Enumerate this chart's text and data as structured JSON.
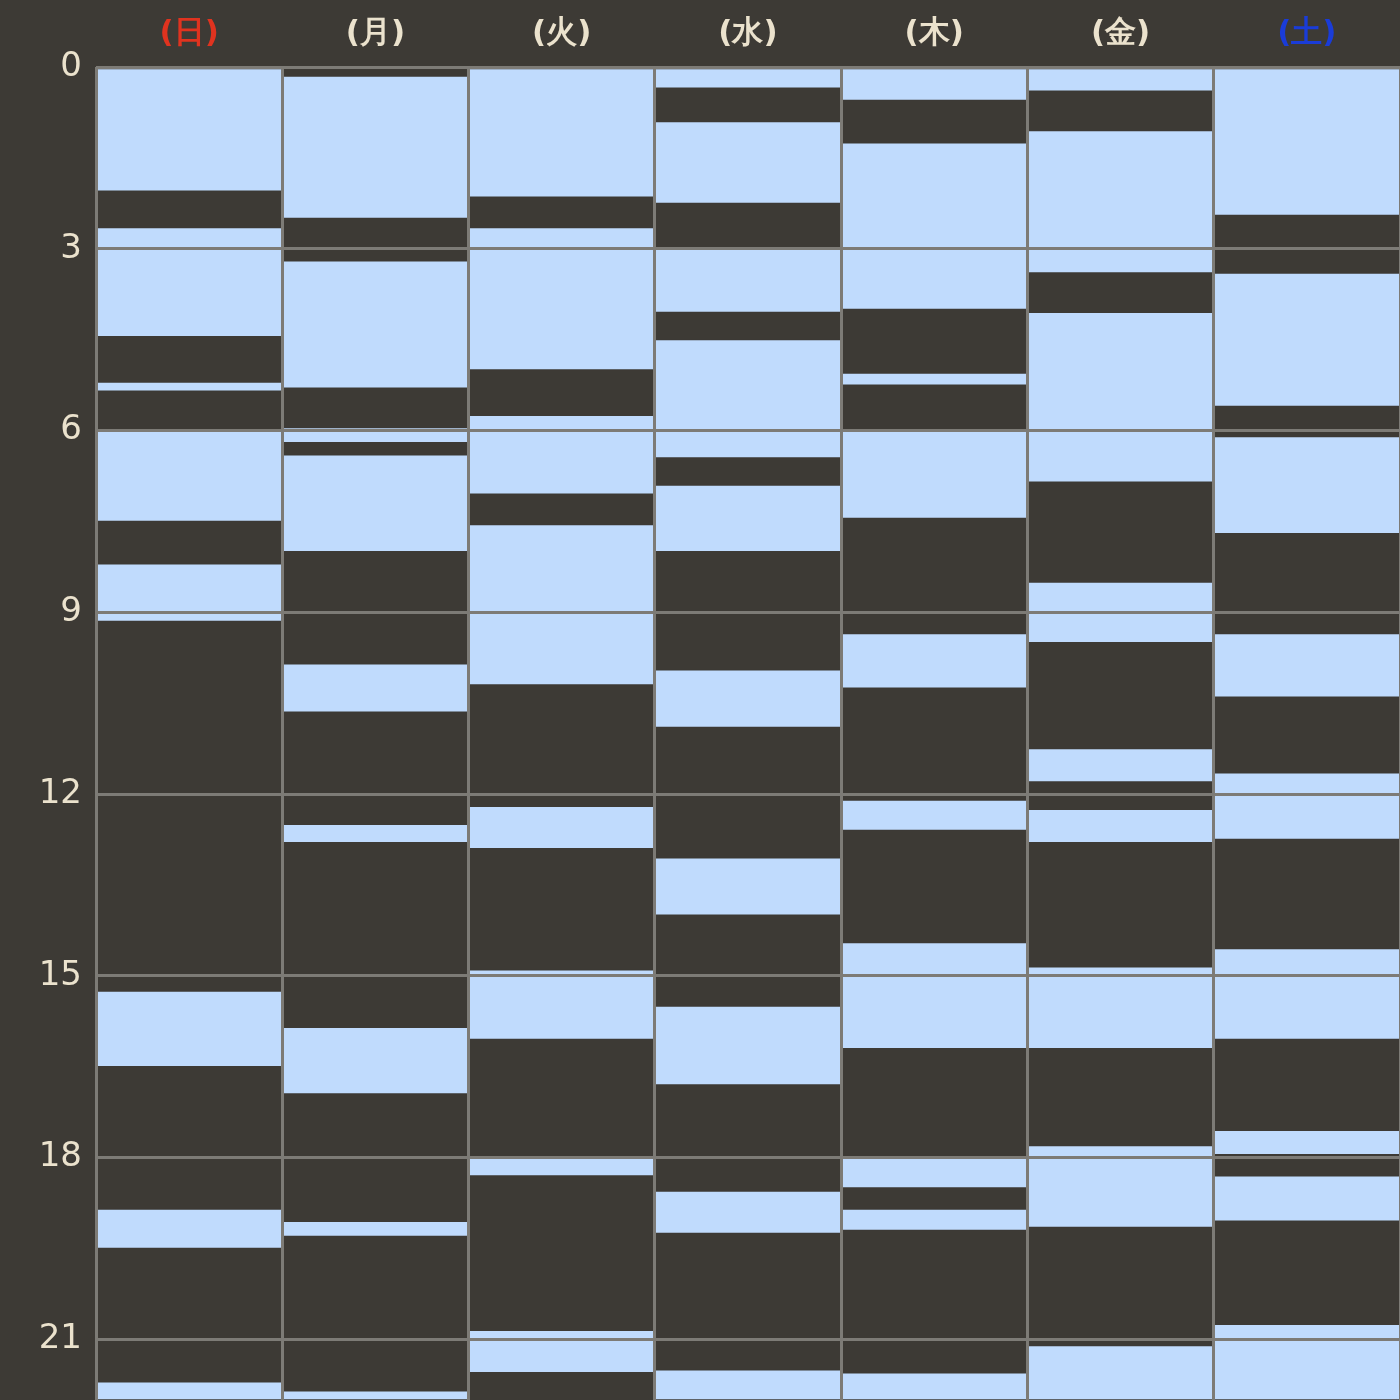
{
  "chart_data": {
    "type": "bar",
    "categories": [
      "(日)",
      "(月)",
      "(火)",
      "(水)",
      "(木)",
      "(金)",
      "(土)"
    ],
    "series": [
      {
        "color": "#c0dbfd",
        "base": [
          0,
          0.15,
          0,
          0,
          0,
          0,
          0
        ],
        "values": [
          2.05,
          2.35,
          2.15,
          0.35,
          0.55,
          0.4,
          2.45
        ]
      },
      {
        "color": "#c0dbfd",
        "base": [
          2.65,
          3.2,
          2.65,
          0.9,
          1.25,
          1.05,
          3.4
        ],
        "values": [
          1.8,
          2.1,
          2.35,
          1.35,
          2.75,
          2.35,
          2.2
        ]
      },
      {
        "color": "#c0dbfd",
        "base": [
          5.2,
          5.95,
          5.75,
          3.0,
          5.05,
          4.05,
          6.1
        ],
        "values": [
          0.15,
          0.25,
          1.3,
          1.05,
          0.2,
          2.8,
          1.6
        ]
      },
      {
        "color": "#c0dbfd",
        "base": [
          6.0,
          6.4,
          7.55,
          4.5,
          6.0,
          8.5,
          9.35
        ],
        "values": [
          1.5,
          1.6,
          2.65,
          1.95,
          1.45,
          1.0,
          1.05
        ]
      },
      {
        "color": "#c0dbfd",
        "base": [
          8.2,
          9.85,
          12.2,
          6.9,
          9.35,
          11.25,
          11.65
        ],
        "values": [
          0.95,
          0.8,
          0.7,
          1.1,
          0.9,
          0.55,
          1.1
        ]
      },
      {
        "color": "#c0dbfd",
        "base": [
          15.25,
          12.5,
          14.9,
          9.95,
          12.1,
          12.25,
          14.55
        ],
        "values": [
          1.25,
          0.3,
          1.15,
          0.95,
          0.5,
          0.55,
          1.5
        ]
      },
      {
        "color": "#c0dbfd",
        "base": [
          18.85,
          15.85,
          18.0,
          13.05,
          14.45,
          14.85,
          17.55
        ],
        "values": [
          0.65,
          1.1,
          0.3,
          0.95,
          1.75,
          1.35,
          0.4
        ]
      },
      {
        "color": "#c0dbfd",
        "base": [
          21.7,
          19.05,
          20.85,
          15.5,
          18.0,
          17.8,
          18.3
        ],
        "values": [
          0.3,
          0.25,
          0.7,
          1.3,
          0.5,
          1.35,
          0.75
        ]
      },
      {
        "color": "#c0dbfd",
        "base": [
          null,
          21.85,
          null,
          18.55,
          18.85,
          21.1,
          20.75
        ],
        "values": [
          null,
          0.15,
          null,
          0.7,
          0.35,
          0.9,
          1.25
        ]
      },
      {
        "color": "#c0dbfd",
        "base": [
          null,
          null,
          null,
          21.5,
          21.55,
          null,
          null
        ],
        "values": [
          null,
          null,
          null,
          0.5,
          0.45,
          null,
          null
        ]
      }
    ],
    "ylim": [
      22,
      0
    ],
    "yticks": [
      0,
      3,
      6,
      9,
      12,
      15,
      18,
      21
    ],
    "grid": true
  }
}
